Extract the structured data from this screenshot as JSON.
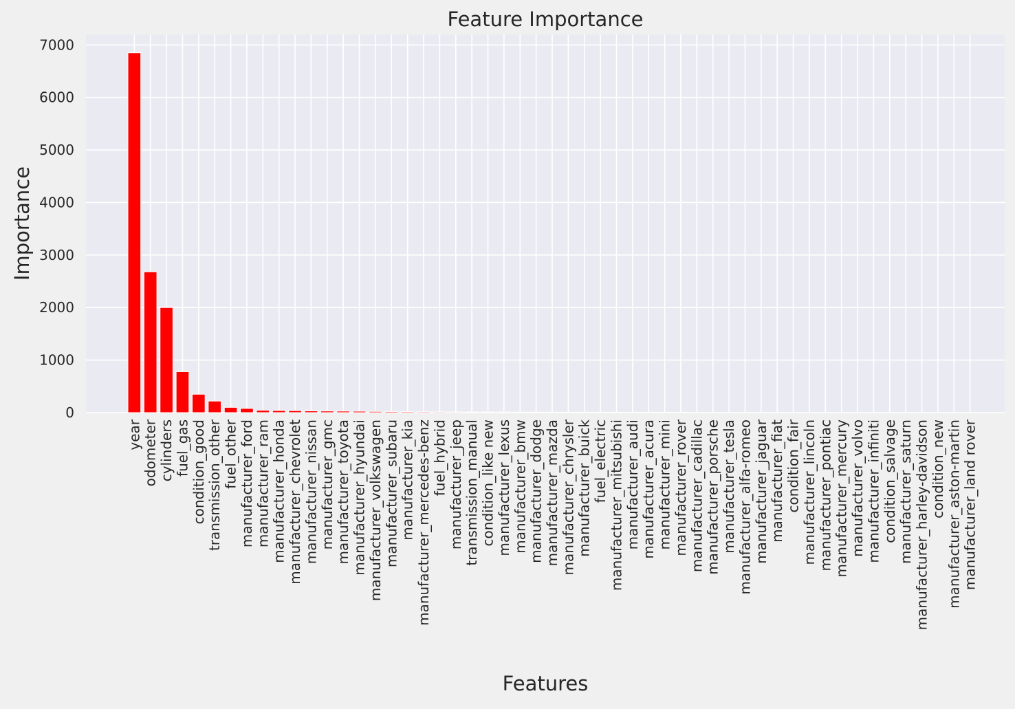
{
  "chart_data": {
    "type": "bar",
    "title": "Feature Importance",
    "xlabel": "Features",
    "ylabel": "Importance",
    "ylim": [
      0,
      7200
    ],
    "yticks": [
      0,
      1000,
      2000,
      3000,
      4000,
      5000,
      6000,
      7000
    ],
    "grid": true,
    "bar_color": "#ff0000",
    "plot_bg": "#eaeaf2",
    "categories": [
      "year",
      "odometer",
      "cylinders",
      "fuel_gas",
      "condition_good",
      "transmission_other",
      "fuel_other",
      "manufacturer_ford",
      "manufacturer_ram",
      "manufacturer_honda",
      "manufacturer_chevrolet",
      "manufacturer_nissan",
      "manufacturer_gmc",
      "manufacturer_toyota",
      "manufacturer_hyundai",
      "manufacturer_volkswagen",
      "manufacturer_subaru",
      "manufacturer_kia",
      "manufacturer_mercedes-benz",
      "fuel_hybrid",
      "manufacturer_jeep",
      "transmission_manual",
      "condition_like new",
      "manufacturer_lexus",
      "manufacturer_bmw",
      "manufacturer_dodge",
      "manufacturer_mazda",
      "manufacturer_chrysler",
      "manufacturer_buick",
      "fuel_electric",
      "manufacturer_mitsubishi",
      "manufacturer_audi",
      "manufacturer_acura",
      "manufacturer_mini",
      "manufacturer_rover",
      "manufacturer_cadillac",
      "manufacturer_porsche",
      "manufacturer_tesla",
      "manufacturer_alfa-romeo",
      "manufacturer_jaguar",
      "manufacturer_fiat",
      "condition_fair",
      "manufacturer_lincoln",
      "manufacturer_pontiac",
      "manufacturer_mercury",
      "manufacturer_volvo",
      "manufacturer_infiniti",
      "condition_salvage",
      "manufacturer_saturn",
      "manufacturer_harley-davidson",
      "condition_new",
      "manufacturer_aston-martin",
      "manufacturer_land rover"
    ],
    "values": [
      6850,
      2680,
      2000,
      780,
      350,
      220,
      100,
      80,
      45,
      40,
      38,
      32,
      30,
      28,
      26,
      22,
      20,
      18,
      16,
      15,
      14,
      13,
      12,
      11,
      10,
      9,
      8,
      7,
      6,
      6,
      5,
      5,
      4,
      4,
      4,
      3,
      3,
      3,
      2,
      2,
      2,
      2,
      2,
      2,
      1,
      1,
      1,
      1,
      1,
      1,
      1,
      0,
      0
    ]
  }
}
